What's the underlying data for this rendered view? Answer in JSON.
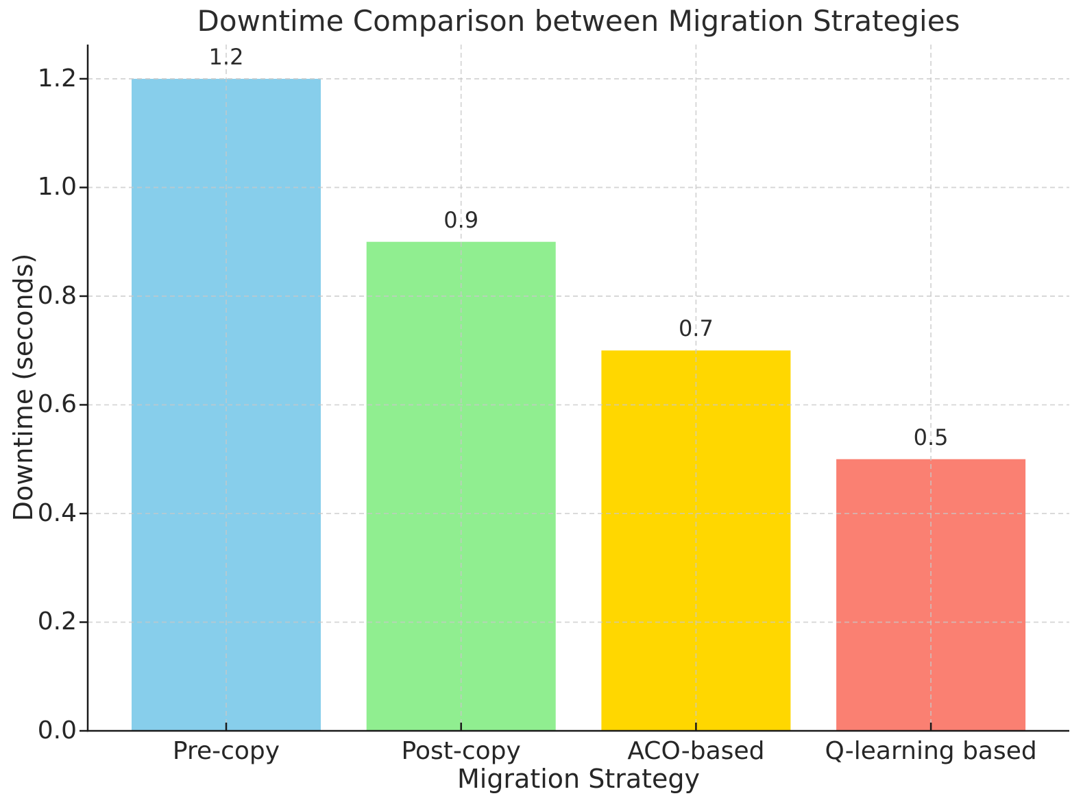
{
  "chart_data": {
    "type": "bar",
    "title": "Downtime Comparison between Migration Strategies",
    "xlabel": "Migration Strategy",
    "ylabel": "Downtime (seconds)",
    "categories": [
      "Pre-copy",
      "Post-copy",
      "ACO-based",
      "Q-learning based"
    ],
    "values": [
      1.2,
      0.9,
      0.7,
      0.5
    ],
    "bar_labels": [
      "1.2",
      "0.9",
      "0.7",
      "0.5"
    ],
    "bar_colors": [
      "#87CEEB",
      "#90EE90",
      "#FFD700",
      "#FA8072"
    ],
    "y_ticks": [
      0.0,
      0.2,
      0.4,
      0.6,
      0.8,
      1.0,
      1.2
    ],
    "y_tick_labels": [
      "0.0",
      "0.2",
      "0.4",
      "0.6",
      "0.8",
      "1.0",
      "1.2"
    ],
    "ylim": [
      0,
      1.263
    ],
    "grid": {
      "visible": true,
      "style": "dashed",
      "horizontal": true,
      "vertical": true
    },
    "legend": null
  },
  "colors": {
    "background": "#ffffff",
    "text": "#262626",
    "axis": "#1a1a1a",
    "grid": "#c8c8c8"
  }
}
